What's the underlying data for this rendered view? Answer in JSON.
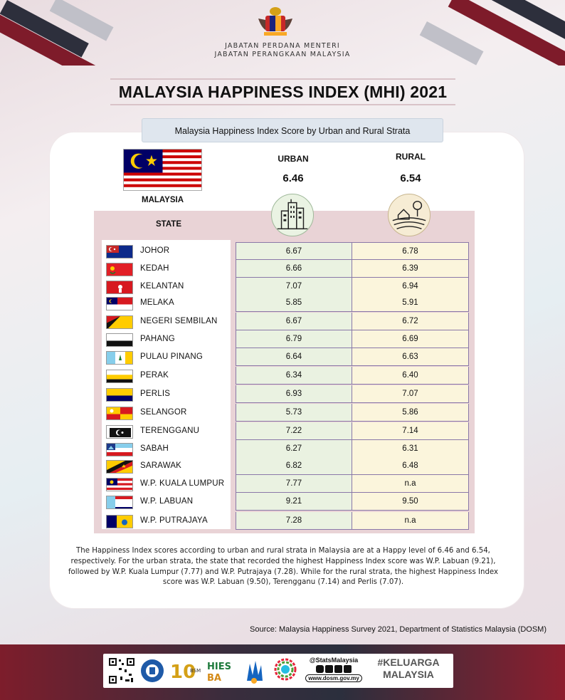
{
  "header": {
    "dept_line1": "JABATAN PERDANA MENTERI",
    "dept_line2": "JABATAN PERANGKAAN MALAYSIA"
  },
  "title": "MALAYSIA HAPPINESS INDEX (MHI) 2021",
  "subtitle": "Malaysia Happiness Index Score by Urban and Rural Strata",
  "malaysia": {
    "label": "MALAYSIA",
    "urban_label": "URBAN",
    "rural_label": "RURAL",
    "urban_value": "6.46",
    "rural_value": "6.54"
  },
  "table": {
    "state_header": "STATE",
    "rows": [
      {
        "state": "JOHOR",
        "urban": "6.67",
        "rural": "6.78"
      },
      {
        "state": "KEDAH",
        "urban": "6.66",
        "rural": "6.39"
      },
      {
        "state": "KELANTAN",
        "urban": "7.07",
        "rural": "6.94"
      },
      {
        "state": "MELAKA",
        "urban": "5.85",
        "rural": "5.91"
      },
      {
        "state": "NEGERI SEMBILAN",
        "urban": "6.67",
        "rural": "6.72"
      },
      {
        "state": "PAHANG",
        "urban": "6.79",
        "rural": "6.69"
      },
      {
        "state": "PULAU PINANG",
        "urban": "6.64",
        "rural": "6.63"
      },
      {
        "state": "PERAK",
        "urban": "6.34",
        "rural": "6.40"
      },
      {
        "state": "PERLIS",
        "urban": "6.93",
        "rural": "7.07"
      },
      {
        "state": "SELANGOR",
        "urban": "5.73",
        "rural": "5.86"
      },
      {
        "state": "TERENGGANU",
        "urban": "7.22",
        "rural": "7.14"
      },
      {
        "state": "SABAH",
        "urban": "6.27",
        "rural": "6.31"
      },
      {
        "state": "SARAWAK",
        "urban": "6.82",
        "rural": "6.48"
      },
      {
        "state": "W.P. KUALA LUMPUR",
        "urban": "7.77",
        "rural": "n.a"
      },
      {
        "state": "W.P. LABUAN",
        "urban": "9.21",
        "rural": "9.50"
      },
      {
        "state": "W.P. PUTRAJAYA",
        "urban": "7.28",
        "rural": "n.a"
      }
    ]
  },
  "description": "The Happiness Index scores according to urban and rural strata in Malaysia are at a Happy level of 6.46 and 6.54, respectively. For the urban strata, the state that recorded the highest Happiness Index score was W.P. Labuan (9.21), followed by W.P. Kuala Lumpur (7.77) and W.P. Putrajaya (7.28). While for the rural strata, the highest Happiness Index score was W.P. Labuan (9.50), Terengganu (7.14) and Perlis (7.07).",
  "source": "Source: Malaysia Happiness Survey 2021, Department of Statistics Malaysia (DOSM)",
  "footer": {
    "social_handle": "@StatsMalaysia",
    "website": "www.dosm.gov.my",
    "campaign": "#KELUARGA MALAYSIA",
    "hies_logo_text": "HIES BA"
  },
  "colors": {
    "urban_cell": "#eaf2e1",
    "rural_cell": "#fbf5dc",
    "table_bg": "#e9d3d6",
    "border": "#8a78a8"
  }
}
